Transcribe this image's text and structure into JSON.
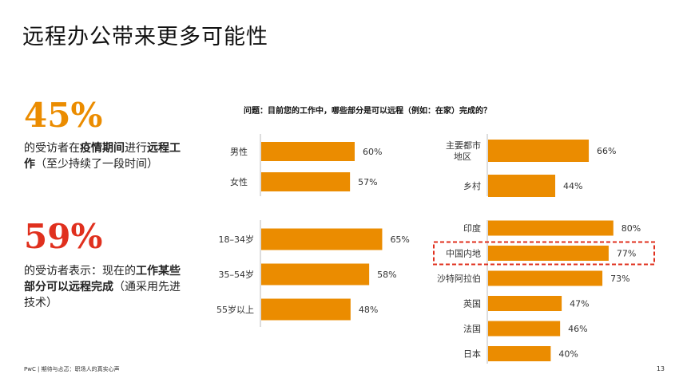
{
  "title": "远程办公带来更多可能性",
  "stats": [
    {
      "value": "45%",
      "desc_parts": [
        {
          "t": "的受访者在",
          "b": false
        },
        {
          "t": "疫情期间",
          "b": true
        },
        {
          "t": "进行",
          "b": false
        },
        {
          "t": "远程工作",
          "b": true
        },
        {
          "t": "（至少持续了一段时间）",
          "b": false
        }
      ]
    },
    {
      "value": "59%",
      "desc_parts": [
        {
          "t": "的受访者表示：现在的",
          "b": false
        },
        {
          "t": "工作某些部分可以远程完成",
          "b": true
        },
        {
          "t": "（通采用先进技术）",
          "b": false
        }
      ]
    }
  ],
  "question": "问题：目前您的工作中，哪些部分是可以远程（例如：在家）完成的？",
  "footer": "PwC | 期待与忐忑：职场人的真实心声",
  "page_number": "13",
  "bar_color": "#eb8c00",
  "highlight_color": "#e0301e",
  "chart_data": [
    {
      "type": "bar",
      "orientation": "horizontal",
      "categories": [
        "男性",
        "女性"
      ],
      "values": [
        60,
        57
      ],
      "value_labels": [
        "60%",
        "57%"
      ]
    },
    {
      "type": "bar",
      "orientation": "horizontal",
      "categories": [
        "18–34岁",
        "35–54岁",
        "55岁以上"
      ],
      "values": [
        65,
        58,
        48
      ],
      "value_labels": [
        "65%",
        "58%",
        "48%"
      ]
    },
    {
      "type": "bar",
      "orientation": "horizontal",
      "categories": [
        "主要都市地区",
        "乡村"
      ],
      "values": [
        66,
        44
      ],
      "value_labels": [
        "66%",
        "44%"
      ]
    },
    {
      "type": "bar",
      "orientation": "horizontal",
      "categories": [
        "印度",
        "中国内地",
        "沙特阿拉伯",
        "英国",
        "法国",
        "日本"
      ],
      "values": [
        80,
        77,
        73,
        47,
        46,
        40
      ],
      "value_labels": [
        "80%",
        "77%",
        "73%",
        "47%",
        "46%",
        "40%"
      ],
      "highlighted": "中国内地"
    }
  ]
}
